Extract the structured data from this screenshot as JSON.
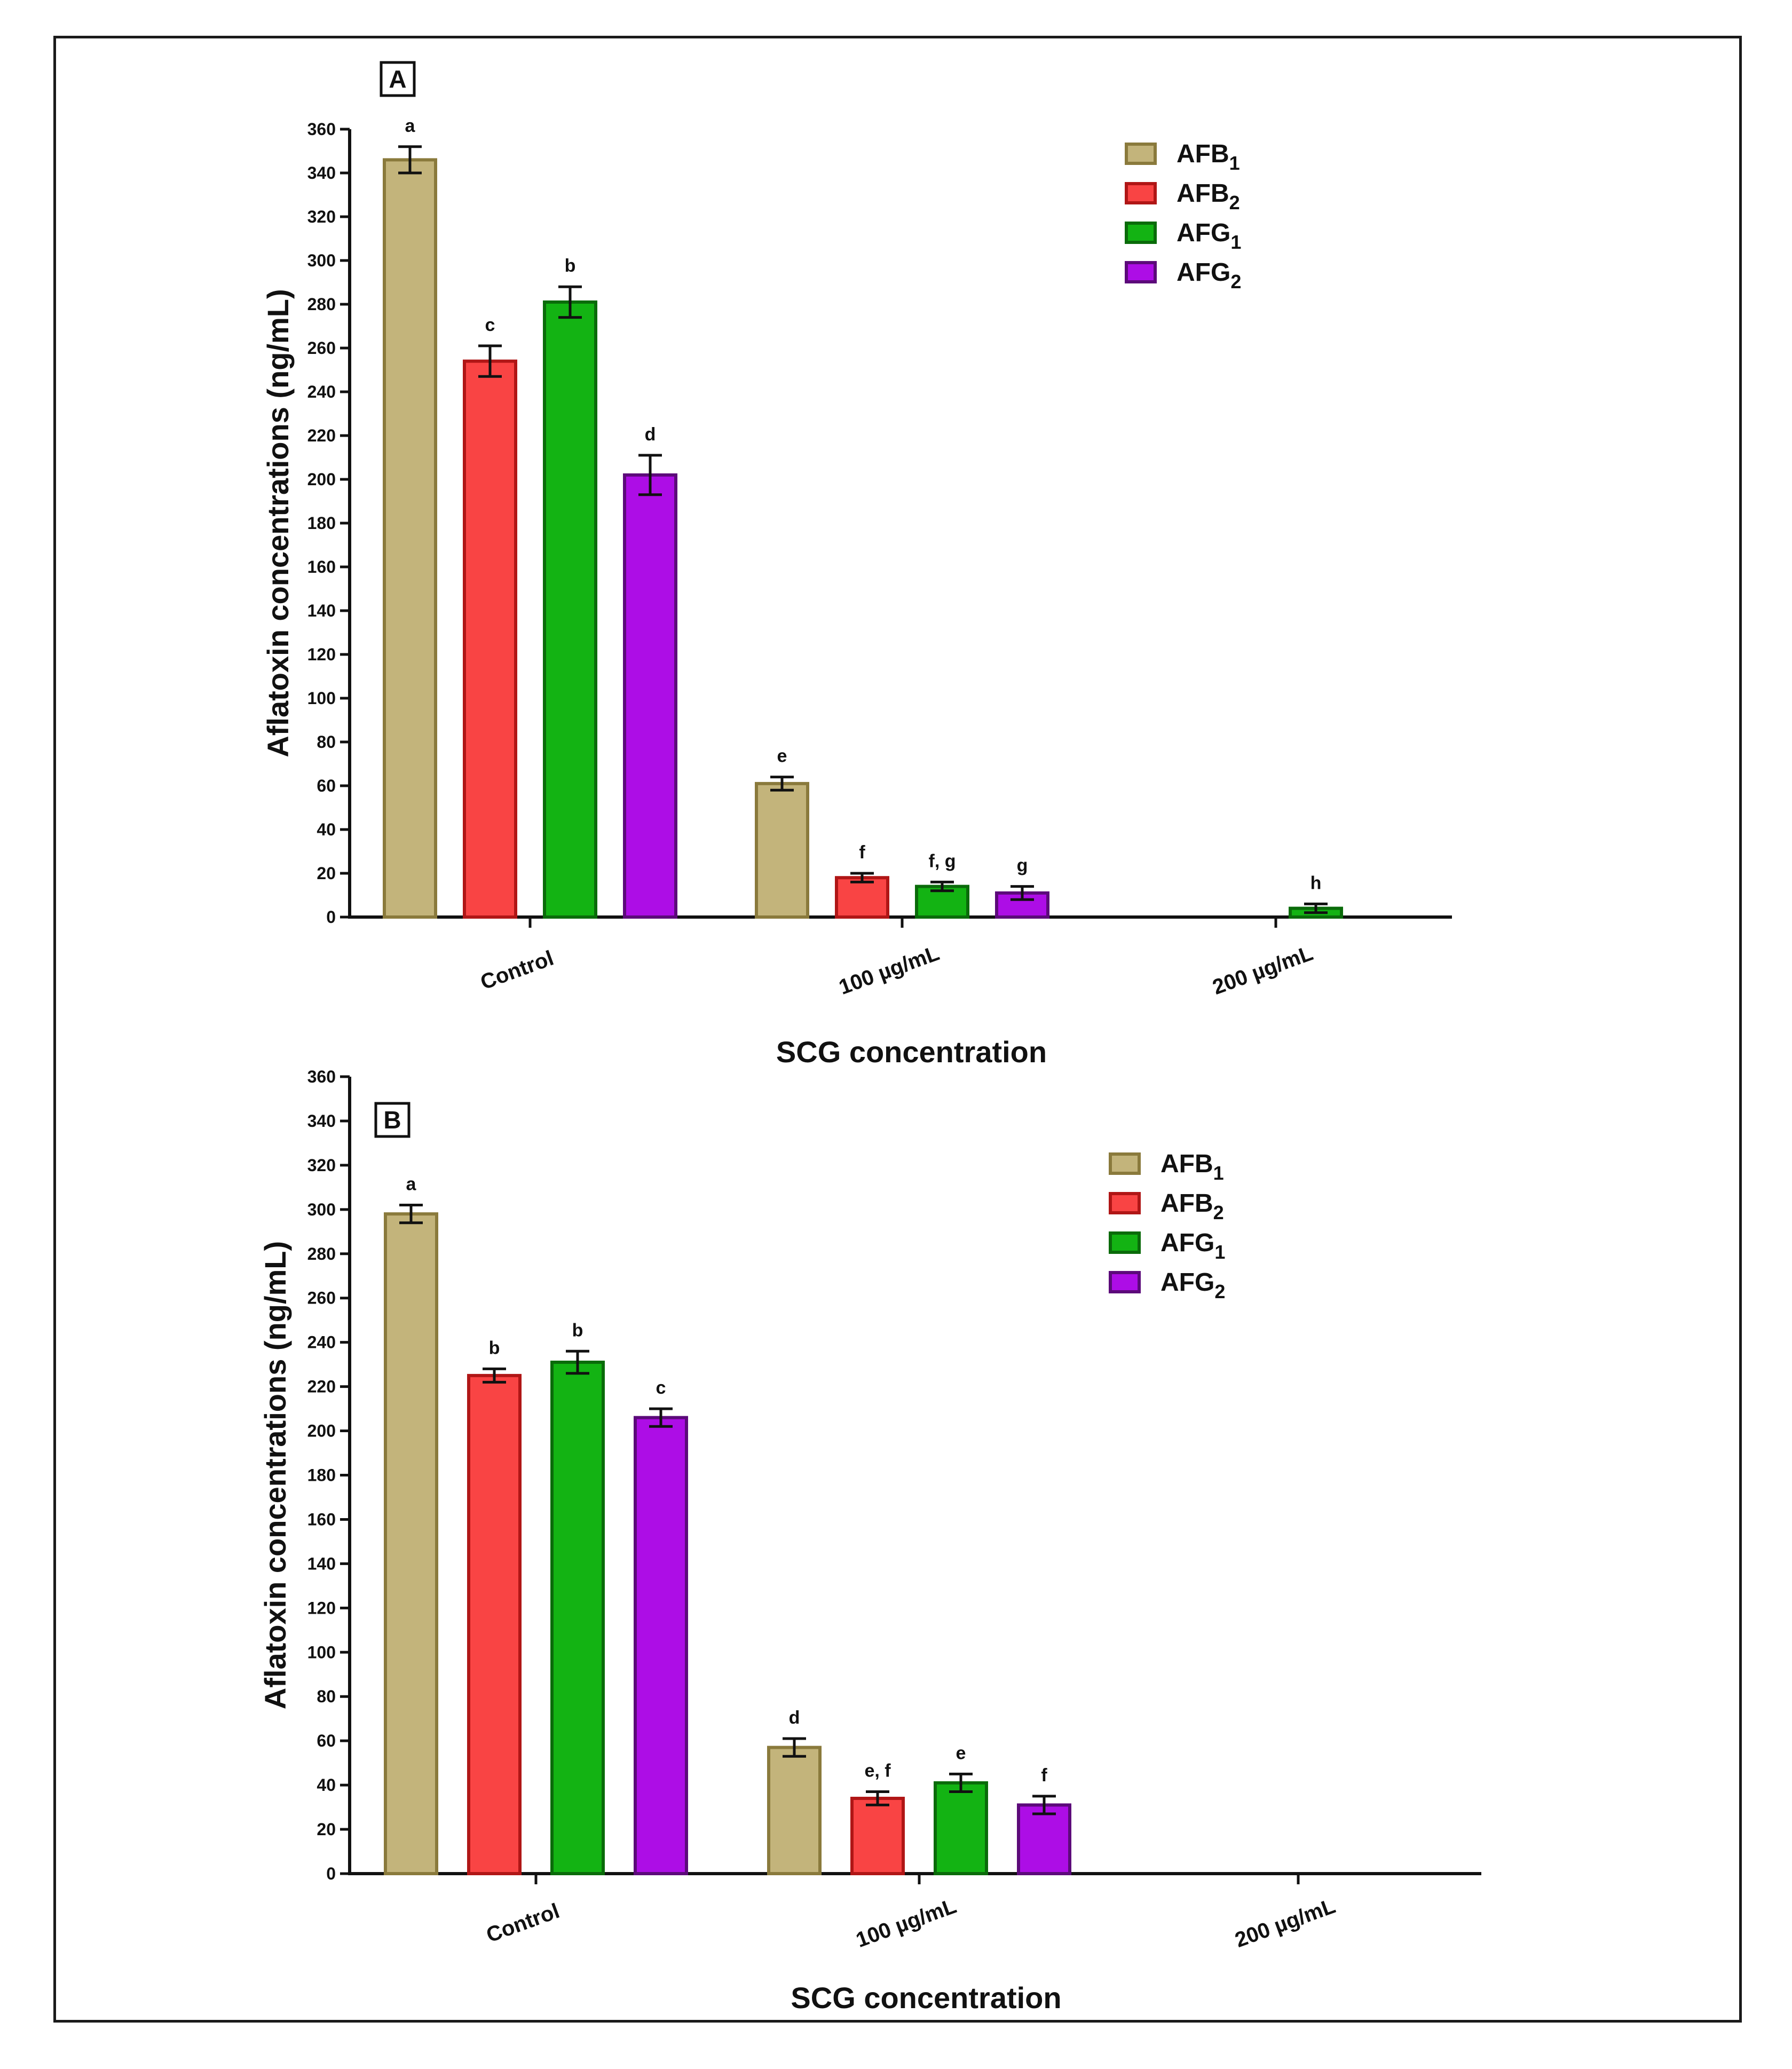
{
  "chart_data": [
    {
      "type": "bar",
      "panel_label": "A",
      "categories": [
        "Control",
        "100 µg/mL",
        "200 µg/mL"
      ],
      "xlabel": "SCG concentration",
      "ylabel": "Aflatoxin concentrations (ng/mL)",
      "ylim": [
        0,
        360
      ],
      "yticks": [
        0,
        20,
        40,
        60,
        80,
        100,
        120,
        140,
        160,
        180,
        200,
        220,
        240,
        260,
        280,
        300,
        320,
        340,
        360
      ],
      "legend_position": "top-right",
      "series": [
        {
          "name": "AFB",
          "subscript": "1",
          "color": "#c3b47b",
          "edge": "#8a7a3c",
          "values": [
            346,
            61,
            0
          ],
          "errors": [
            6,
            3,
            0
          ],
          "labels": [
            "a",
            "e",
            ""
          ]
        },
        {
          "name": "AFB",
          "subscript": "2",
          "color": "#f94444",
          "edge": "#b01616",
          "values": [
            254,
            18,
            0
          ],
          "errors": [
            7,
            2,
            0
          ],
          "labels": [
            "c",
            "f",
            ""
          ]
        },
        {
          "name": "AFG",
          "subscript": "1",
          "color": "#13b313",
          "edge": "#0a6b0a",
          "values": [
            281,
            14,
            4
          ],
          "errors": [
            7,
            2,
            2
          ],
          "labels": [
            "b",
            "f, g",
            "h"
          ]
        },
        {
          "name": "AFG",
          "subscript": "2",
          "color": "#ad0de6",
          "edge": "#5c0a7a",
          "values": [
            202,
            11,
            0
          ],
          "errors": [
            9,
            3,
            0
          ],
          "labels": [
            "d",
            "g",
            ""
          ]
        }
      ]
    },
    {
      "type": "bar",
      "panel_label": "B",
      "categories": [
        "Control",
        "100 µg/mL",
        "200 µg/mL"
      ],
      "xlabel": "SCG concentration",
      "ylabel": "Aflatoxin concentrations (ng/mL)",
      "ylim": [
        0,
        360
      ],
      "yticks": [
        0,
        20,
        40,
        60,
        80,
        100,
        120,
        140,
        160,
        180,
        200,
        220,
        240,
        260,
        280,
        300,
        320,
        340,
        360
      ],
      "legend_position": "top-right",
      "series": [
        {
          "name": "AFB",
          "subscript": "1",
          "color": "#c3b47b",
          "edge": "#8a7a3c",
          "values": [
            298,
            57,
            0
          ],
          "errors": [
            4,
            4,
            0
          ],
          "labels": [
            "a",
            "d",
            ""
          ]
        },
        {
          "name": "AFB",
          "subscript": "2",
          "color": "#f94444",
          "edge": "#b01616",
          "values": [
            225,
            34,
            0
          ],
          "errors": [
            3,
            3,
            0
          ],
          "labels": [
            "b",
            "e, f",
            ""
          ]
        },
        {
          "name": "AFG",
          "subscript": "1",
          "color": "#13b313",
          "edge": "#0a6b0a",
          "values": [
            231,
            41,
            0
          ],
          "errors": [
            5,
            4,
            0
          ],
          "labels": [
            "b",
            "e",
            ""
          ]
        },
        {
          "name": "AFG",
          "subscript": "2",
          "color": "#ad0de6",
          "edge": "#5c0a7a",
          "values": [
            206,
            31,
            0
          ],
          "errors": [
            4,
            4,
            0
          ],
          "labels": [
            "c",
            "f",
            ""
          ]
        }
      ]
    }
  ]
}
